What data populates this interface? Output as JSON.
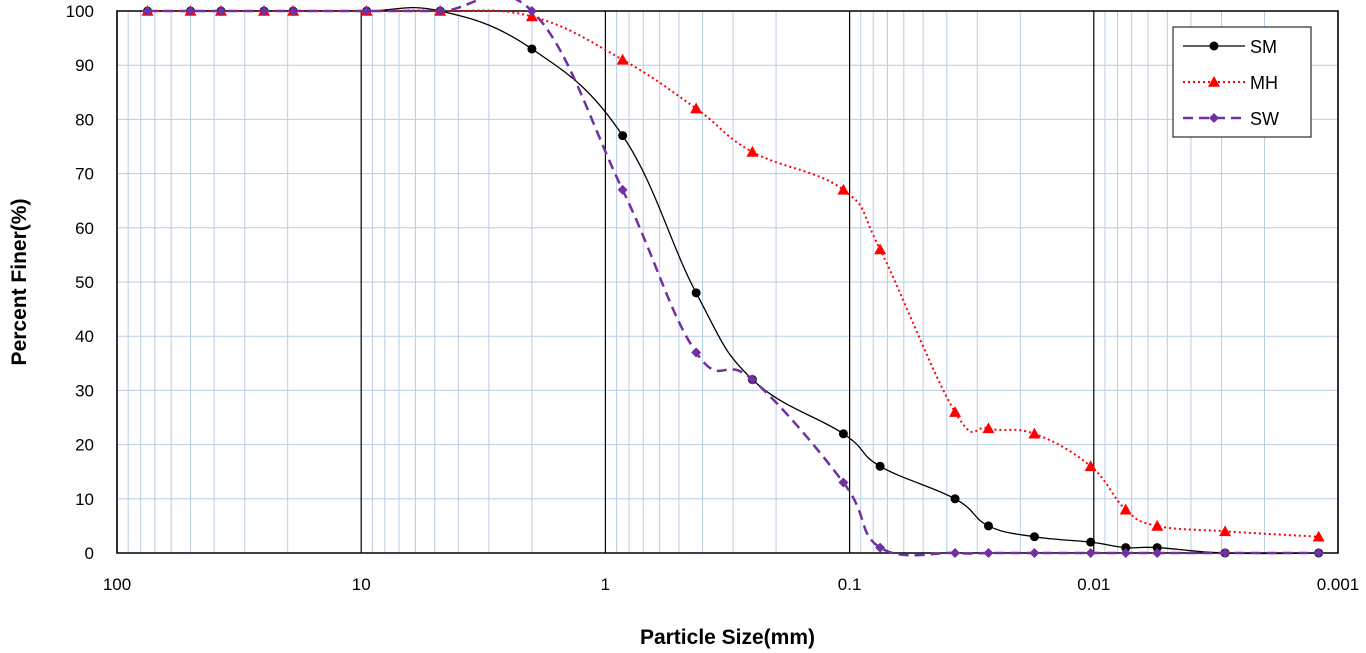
{
  "chart_data": {
    "type": "line",
    "xscale": "log",
    "xreversed": true,
    "xlim": [
      100,
      0.001
    ],
    "ylim": [
      0,
      100
    ],
    "xlabel": "Particle Size(mm)",
    "ylabel": "Percent Finer(%)",
    "xticks": [
      {
        "value": 100,
        "label": "100"
      },
      {
        "value": 10,
        "label": "10"
      },
      {
        "value": 1,
        "label": "1"
      },
      {
        "value": 0.1,
        "label": "0.1"
      },
      {
        "value": 0.01,
        "label": "0.01"
      },
      {
        "value": 0.001,
        "label": "0.001"
      }
    ],
    "yticks": [
      {
        "value": 0,
        "label": "0"
      },
      {
        "value": 10,
        "label": "10"
      },
      {
        "value": 20,
        "label": "20"
      },
      {
        "value": 30,
        "label": "30"
      },
      {
        "value": 40,
        "label": "40"
      },
      {
        "value": 50,
        "label": "50"
      },
      {
        "value": 60,
        "label": "60"
      },
      {
        "value": 70,
        "label": "70"
      },
      {
        "value": 80,
        "label": "80"
      },
      {
        "value": 90,
        "label": "90"
      },
      {
        "value": 100,
        "label": "100"
      }
    ],
    "grid": true,
    "legend_position": "top-right",
    "series": [
      {
        "name": "SM",
        "color": "#000000",
        "line": "solid",
        "marker": "circle",
        "points": [
          {
            "x": 75,
            "y": 100
          },
          {
            "x": 50,
            "y": 100
          },
          {
            "x": 37.5,
            "y": 100
          },
          {
            "x": 25,
            "y": 100
          },
          {
            "x": 19,
            "y": 100
          },
          {
            "x": 9.5,
            "y": 100
          },
          {
            "x": 4.75,
            "y": 100
          },
          {
            "x": 2,
            "y": 93
          },
          {
            "x": 0.85,
            "y": 77
          },
          {
            "x": 0.425,
            "y": 48
          },
          {
            "x": 0.25,
            "y": 32
          },
          {
            "x": 0.106,
            "y": 22
          },
          {
            "x": 0.075,
            "y": 16
          },
          {
            "x": 0.037,
            "y": 10
          },
          {
            "x": 0.027,
            "y": 5
          },
          {
            "x": 0.0175,
            "y": 3
          },
          {
            "x": 0.0103,
            "y": 2
          },
          {
            "x": 0.0074,
            "y": 1
          },
          {
            "x": 0.0055,
            "y": 1
          },
          {
            "x": 0.0029,
            "y": 0
          },
          {
            "x": 0.0012,
            "y": 0
          }
        ]
      },
      {
        "name": "MH",
        "color": "#ff0000",
        "line": "dotted",
        "marker": "triangle",
        "points": [
          {
            "x": 75,
            "y": 100
          },
          {
            "x": 50,
            "y": 100
          },
          {
            "x": 37.5,
            "y": 100
          },
          {
            "x": 25,
            "y": 100
          },
          {
            "x": 19,
            "y": 100
          },
          {
            "x": 9.5,
            "y": 100
          },
          {
            "x": 4.75,
            "y": 100
          },
          {
            "x": 2,
            "y": 99
          },
          {
            "x": 0.85,
            "y": 91
          },
          {
            "x": 0.425,
            "y": 82
          },
          {
            "x": 0.25,
            "y": 74
          },
          {
            "x": 0.106,
            "y": 67
          },
          {
            "x": 0.075,
            "y": 56
          },
          {
            "x": 0.037,
            "y": 26
          },
          {
            "x": 0.027,
            "y": 23
          },
          {
            "x": 0.0175,
            "y": 22
          },
          {
            "x": 0.0103,
            "y": 16
          },
          {
            "x": 0.0074,
            "y": 8
          },
          {
            "x": 0.0055,
            "y": 5
          },
          {
            "x": 0.0029,
            "y": 4
          },
          {
            "x": 0.0012,
            "y": 3
          }
        ]
      },
      {
        "name": "SW",
        "color": "#7030a0",
        "line": "dashed",
        "marker": "diamond",
        "points": [
          {
            "x": 75,
            "y": 100
          },
          {
            "x": 50,
            "y": 100
          },
          {
            "x": 37.5,
            "y": 100
          },
          {
            "x": 25,
            "y": 100
          },
          {
            "x": 19,
            "y": 100
          },
          {
            "x": 9.5,
            "y": 100
          },
          {
            "x": 4.75,
            "y": 100
          },
          {
            "x": 2,
            "y": 100
          },
          {
            "x": 0.85,
            "y": 67
          },
          {
            "x": 0.425,
            "y": 37
          },
          {
            "x": 0.25,
            "y": 32
          },
          {
            "x": 0.106,
            "y": 13
          },
          {
            "x": 0.075,
            "y": 1
          },
          {
            "x": 0.037,
            "y": 0
          },
          {
            "x": 0.027,
            "y": 0
          },
          {
            "x": 0.0175,
            "y": 0
          },
          {
            "x": 0.0103,
            "y": 0
          },
          {
            "x": 0.0074,
            "y": 0
          },
          {
            "x": 0.0055,
            "y": 0
          },
          {
            "x": 0.0029,
            "y": 0
          },
          {
            "x": 0.0012,
            "y": 0
          }
        ]
      }
    ]
  }
}
